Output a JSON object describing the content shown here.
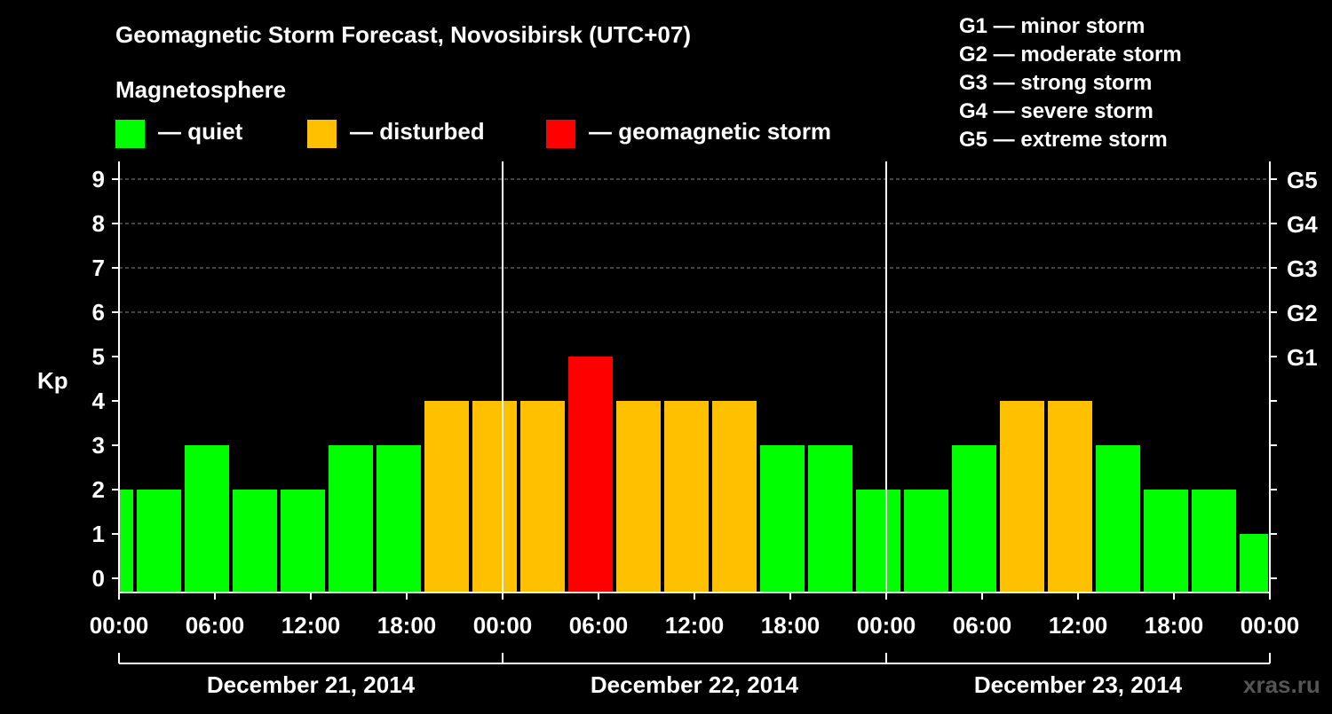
{
  "chart_data": {
    "type": "bar",
    "title": "Geomagnetic Storm Forecast, Novosibirsk (UTC+07)",
    "legend_title": "Magnetosphere",
    "legend": [
      {
        "label": "— quiet",
        "color": "#00ff00"
      },
      {
        "label": "— disturbed",
        "color": "#ffc000"
      },
      {
        "label": "— geomagnetic storm",
        "color": "#ff0000"
      }
    ],
    "storm_scale": [
      "G1 — minor storm",
      "G2 — moderate storm",
      "G3 — strong storm",
      "G4 — severe storm",
      "G5 — extreme storm"
    ],
    "ylabel": "Kp",
    "ylim": [
      0,
      9
    ],
    "yticks": [
      "0",
      "1",
      "2",
      "3",
      "4",
      "5",
      "6",
      "7",
      "8",
      "9"
    ],
    "right_ticks": [
      {
        "kp": 5,
        "label": "G1"
      },
      {
        "kp": 6,
        "label": "G2"
      },
      {
        "kp": 7,
        "label": "G3"
      },
      {
        "kp": 8,
        "label": "G4"
      },
      {
        "kp": 9,
        "label": "G5"
      }
    ],
    "xlim_hours": [
      0,
      72
    ],
    "xticks": [
      "00:00",
      "06:00",
      "12:00",
      "18:00",
      "00:00",
      "06:00",
      "12:00",
      "18:00",
      "00:00",
      "06:00",
      "12:00",
      "18:00",
      "00:00"
    ],
    "days": [
      "December 21, 2014",
      "December 22, 2014",
      "December 23, 2014"
    ],
    "bars": [
      {
        "start_h": -2,
        "value": 2
      },
      {
        "start_h": 1,
        "value": 2
      },
      {
        "start_h": 4,
        "value": 3
      },
      {
        "start_h": 7,
        "value": 2
      },
      {
        "start_h": 10,
        "value": 2
      },
      {
        "start_h": 13,
        "value": 3
      },
      {
        "start_h": 16,
        "value": 3
      },
      {
        "start_h": 19,
        "value": 4
      },
      {
        "start_h": 22,
        "value": 4
      },
      {
        "start_h": 25,
        "value": 4
      },
      {
        "start_h": 28,
        "value": 5
      },
      {
        "start_h": 31,
        "value": 4
      },
      {
        "start_h": 34,
        "value": 4
      },
      {
        "start_h": 37,
        "value": 4
      },
      {
        "start_h": 40,
        "value": 3
      },
      {
        "start_h": 43,
        "value": 3
      },
      {
        "start_h": 46,
        "value": 2
      },
      {
        "start_h": 49,
        "value": 2
      },
      {
        "start_h": 52,
        "value": 3
      },
      {
        "start_h": 55,
        "value": 4
      },
      {
        "start_h": 58,
        "value": 4
      },
      {
        "start_h": 61,
        "value": 3
      },
      {
        "start_h": 64,
        "value": 2
      },
      {
        "start_h": 67,
        "value": 2
      },
      {
        "start_h": 70,
        "value": 1
      }
    ],
    "watermark": "xras.ru"
  }
}
